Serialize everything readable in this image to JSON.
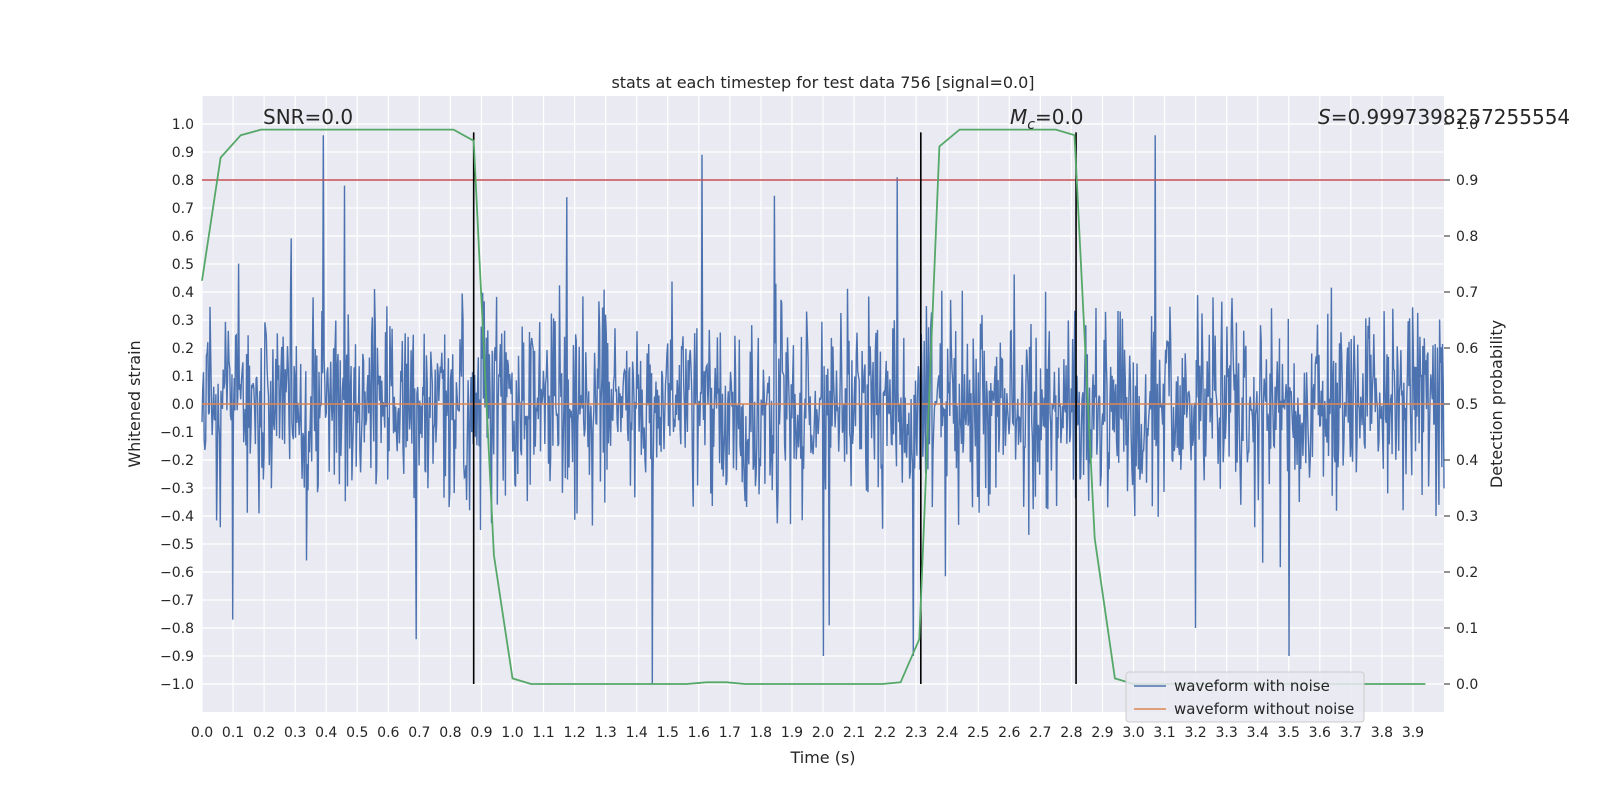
{
  "chart_data": {
    "type": "line",
    "title": "stats at each timestep for test data 756 [signal=0.0]",
    "xlabel": "Time (s)",
    "ylabel": "Whitened strain",
    "y2label": "Detection probability",
    "xlim": [
      0.0,
      4.0
    ],
    "ylim": [
      -1.1,
      1.1
    ],
    "y2lim": [
      -0.05,
      1.05
    ],
    "x_ticks": [
      "0.0",
      "0.1",
      "0.2",
      "0.3",
      "0.4",
      "0.5",
      "0.6",
      "0.7",
      "0.8",
      "0.9",
      "1.0",
      "1.1",
      "1.2",
      "1.3",
      "1.4",
      "1.5",
      "1.6",
      "1.7",
      "1.8",
      "1.9",
      "2.0",
      "2.1",
      "2.2",
      "2.3",
      "2.4",
      "2.5",
      "2.6",
      "2.7",
      "2.8",
      "2.9",
      "3.0",
      "3.1",
      "3.2",
      "3.3",
      "3.4",
      "3.5",
      "3.6",
      "3.7",
      "3.8",
      "3.9"
    ],
    "y_ticks": [
      "1.0",
      "0.9",
      "0.8",
      "0.7",
      "0.6",
      "0.5",
      "0.4",
      "0.3",
      "0.2",
      "0.1",
      "0.0",
      "−0.1",
      "−0.2",
      "−0.3",
      "−0.4",
      "−0.5",
      "−0.6",
      "−0.7",
      "−0.8",
      "−0.9",
      "−1.0"
    ],
    "y2_ticks": [
      "1.0",
      "0.9",
      "0.8",
      "0.7",
      "0.6",
      "0.5",
      "0.4",
      "0.3",
      "0.2",
      "0.1",
      "0.0"
    ],
    "annotations": {
      "snr": "SNR=0.0",
      "mc_symbol": "M",
      "mc_sub": "c",
      "mc_value": "=0.0",
      "s_symbol": "S",
      "s_value": "=0.9997398257255554"
    },
    "grid": true,
    "legend_position": "lower right",
    "series": [
      {
        "name": "waveform with noise",
        "color": "#4c72b0",
        "kind": "noise",
        "envelope": [
          -1.0,
          0.96
        ],
        "peaks": [
          {
            "x": 0.39,
            "y": 0.96
          },
          {
            "x": 0.46,
            "y": 0.78
          },
          {
            "x": 1.61,
            "y": 0.89
          },
          {
            "x": 2.24,
            "y": 0.81
          },
          {
            "x": 3.07,
            "y": 0.96
          },
          {
            "x": 1.45,
            "y": -1.0
          },
          {
            "x": 2.29,
            "y": -0.9
          },
          {
            "x": 2.0,
            "y": -0.9
          },
          {
            "x": 0.69,
            "y": -0.84
          },
          {
            "x": 0.1,
            "y": -0.77
          },
          {
            "x": 3.2,
            "y": -0.8
          }
        ]
      },
      {
        "name": "waveform without noise",
        "color": "#dd8452",
        "x": [
          0.0,
          4.0
        ],
        "y": [
          0.0,
          0.0
        ]
      },
      {
        "name": "",
        "color": "#55a868",
        "axis": "right",
        "x": [
          0.0,
          0.06,
          0.125,
          0.19,
          0.25,
          0.31,
          0.375,
          0.44,
          0.5,
          0.56,
          0.625,
          0.69,
          0.75,
          0.81,
          0.875,
          0.94,
          1.0,
          1.06,
          1.125,
          1.19,
          1.25,
          1.31,
          1.375,
          1.44,
          1.5,
          1.56,
          1.625,
          1.69,
          1.75,
          1.81,
          1.875,
          1.94,
          2.0,
          2.06,
          2.125,
          2.19,
          2.25,
          2.31,
          2.375,
          2.44,
          2.5,
          2.56,
          2.625,
          2.69,
          2.75,
          2.81,
          2.875,
          2.94,
          3.0,
          3.06,
          3.125,
          3.19,
          3.25,
          3.31,
          3.375,
          3.44,
          3.5,
          3.56,
          3.625,
          3.69,
          3.75,
          3.81,
          3.875,
          3.94
        ],
        "y": [
          0.72,
          0.94,
          0.98,
          0.99,
          0.99,
          0.99,
          0.99,
          0.99,
          0.99,
          0.99,
          0.99,
          0.99,
          0.99,
          0.99,
          0.97,
          0.23,
          0.01,
          0.0,
          0.0,
          0.0,
          0.0,
          0.0,
          0.0,
          0.0,
          0.0,
          0.0,
          0.003,
          0.003,
          0.0,
          0.0,
          0.0,
          0.0,
          0.0,
          0.0,
          0.0,
          0.0,
          0.003,
          0.08,
          0.96,
          0.99,
          0.99,
          0.99,
          0.99,
          0.99,
          0.99,
          0.98,
          0.26,
          0.01,
          0.0,
          0.0,
          0.0,
          0.0,
          0.0,
          0.0,
          0.0,
          0.0,
          0.0,
          0.0,
          0.0,
          0.0,
          0.0,
          0.0,
          0.0,
          0.0
        ]
      }
    ],
    "threshold_line": {
      "axis": "right",
      "value": 0.9,
      "color": "#c44e52"
    },
    "vertical_lines": [
      0.875,
      2.315,
      2.815
    ],
    "vline_range": [
      -1.0,
      0.97
    ]
  }
}
